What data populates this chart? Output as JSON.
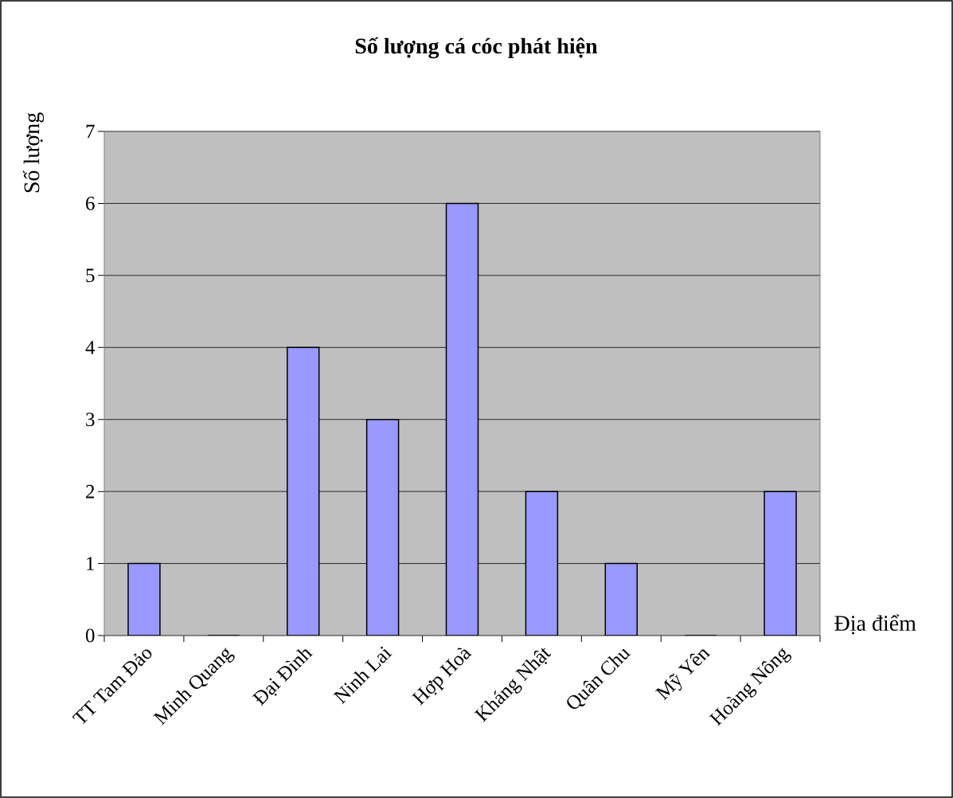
{
  "chart_data": {
    "type": "bar",
    "title": "Số lượng cá cóc phát hiện",
    "xlabel": "Địa điểm",
    "ylabel": "Số lượng",
    "categories": [
      "TT Tam Đảo",
      "Minh Quang",
      "Đại Đình",
      "Ninh Lai",
      "Hợp Hoà",
      "Kháng Nhật",
      "Quân Chu",
      "Mỹ Yên",
      "Hoàng Nông"
    ],
    "values": [
      1,
      0,
      4,
      3,
      6,
      2,
      1,
      0,
      2
    ],
    "color": "#9999ff",
    "ylim": [
      0,
      7
    ],
    "yticks": [
      0,
      1,
      2,
      3,
      4,
      5,
      6,
      7
    ],
    "grid": "y"
  }
}
